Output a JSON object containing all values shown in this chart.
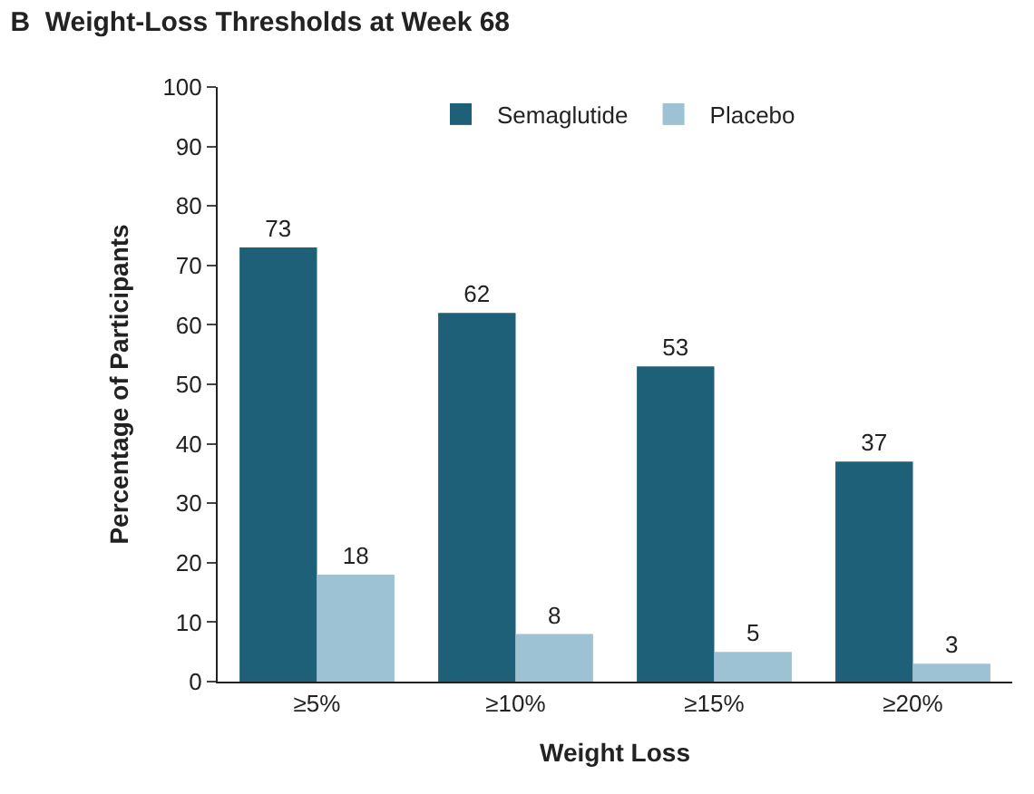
{
  "chart_data": {
    "type": "bar",
    "title": "B  Weight-Loss Thresholds at Week 68",
    "xlabel": "Weight Loss",
    "ylabel": "Percentage of Participants",
    "categories": [
      "≥5%",
      "≥10%",
      "≥15%",
      "≥20%"
    ],
    "series": [
      {
        "name": "Semaglutide",
        "color": "#1f6079",
        "values": [
          73,
          62,
          53,
          37
        ]
      },
      {
        "name": "Placebo",
        "color": "#9cc2d3",
        "values": [
          18,
          8,
          5,
          3
        ]
      }
    ],
    "ylim": [
      0,
      100
    ],
    "yticks": [
      0,
      10,
      20,
      30,
      40,
      50,
      60,
      70,
      80,
      90,
      100
    ],
    "legend": "top",
    "data_labels": true
  }
}
